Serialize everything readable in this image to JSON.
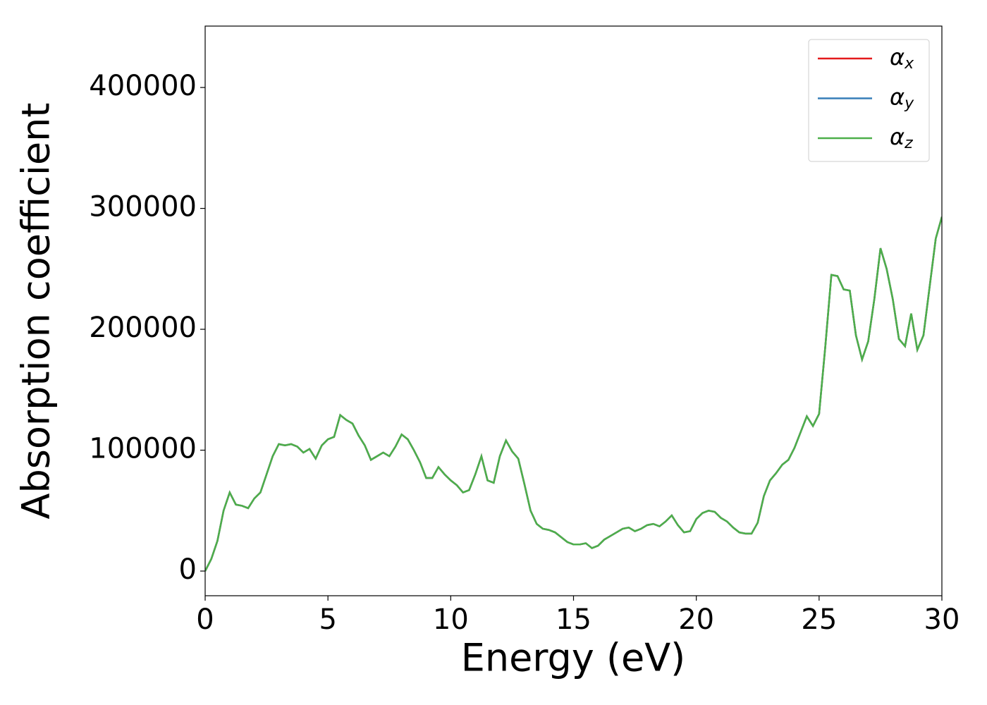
{
  "chart_data": {
    "type": "line",
    "xlabel": "Energy (eV)",
    "ylabel": "Absorption coefficient",
    "xlim": [
      0,
      30
    ],
    "ylim": [
      -20400,
      450800
    ],
    "xticks": [
      0,
      5,
      10,
      15,
      20,
      25,
      30
    ],
    "yticks": [
      0,
      100000,
      200000,
      300000,
      400000
    ],
    "grid": false,
    "legend": "upper right",
    "x": [
      0,
      0.25,
      0.5,
      0.75,
      1,
      1.25,
      1.5,
      1.75,
      2,
      2.25,
      2.5,
      2.75,
      3,
      3.25,
      3.5,
      3.75,
      4,
      4.25,
      4.5,
      4.75,
      5,
      5.25,
      5.5,
      5.75,
      6,
      6.25,
      6.5,
      6.75,
      7,
      7.25,
      7.5,
      7.75,
      8,
      8.25,
      8.5,
      8.75,
      9,
      9.25,
      9.5,
      9.75,
      10,
      10.25,
      10.5,
      10.75,
      11,
      11.25,
      11.5,
      11.75,
      12,
      12.25,
      12.5,
      12.75,
      13,
      13.25,
      13.5,
      13.75,
      14,
      14.25,
      14.5,
      14.75,
      15,
      15.25,
      15.5,
      15.75,
      16,
      16.25,
      16.5,
      16.75,
      17,
      17.25,
      17.5,
      17.75,
      18,
      18.25,
      18.5,
      18.75,
      19,
      19.25,
      19.5,
      19.75,
      20,
      20.25,
      20.5,
      20.75,
      21,
      21.25,
      21.5,
      21.75,
      22,
      22.25,
      22.5,
      22.75,
      23,
      23.25,
      23.5,
      23.75,
      24,
      24.25,
      24.5,
      24.75,
      25,
      25.25,
      25.5,
      25.75,
      26,
      26.25,
      26.5,
      26.75,
      27,
      27.25,
      27.5,
      27.75,
      28,
      28.25,
      28.5,
      28.75,
      29,
      29.25,
      29.5,
      29.75,
      30
    ],
    "series": [
      {
        "name": "αx",
        "color": "#e41a1c",
        "values": [
          0,
          10000,
          25000,
          50000,
          65000,
          55000,
          54000,
          52000,
          60000,
          65000,
          80000,
          95000,
          105000,
          104000,
          105000,
          103000,
          98000,
          101000,
          93000,
          104000,
          109000,
          111000,
          129000,
          125000,
          122000,
          112000,
          104000,
          92000,
          95000,
          98000,
          95000,
          103000,
          113000,
          109000,
          100000,
          90000,
          77000,
          77000,
          86000,
          80000,
          75000,
          71000,
          65000,
          67000,
          80000,
          95000,
          75000,
          73000,
          95000,
          108000,
          99000,
          93000,
          72000,
          50000,
          39000,
          35000,
          34000,
          32000,
          28000,
          24000,
          22000,
          22000,
          23000,
          19000,
          21000,
          26000,
          29000,
          32000,
          35000,
          36000,
          33000,
          35000,
          38000,
          39000,
          37000,
          41000,
          46000,
          38000,
          32000,
          33000,
          43000,
          48000,
          50000,
          49000,
          44000,
          41000,
          36000,
          32000,
          31000,
          31000,
          40000,
          62000,
          75000,
          81000,
          88000,
          92000,
          102000,
          115000,
          128000,
          120000,
          130000,
          185000,
          245000,
          244000,
          233000,
          232000,
          195000,
          175000,
          190000,
          225000,
          267000,
          250000,
          225000,
          192000,
          186000,
          213000,
          183000,
          195000,
          235000,
          275000,
          293000
        ]
      },
      {
        "name": "αy",
        "color": "#377eb8",
        "values": [
          0,
          10000,
          25000,
          50000,
          65000,
          55000,
          54000,
          52000,
          60000,
          65000,
          80000,
          95000,
          105000,
          104000,
          105000,
          103000,
          98000,
          101000,
          93000,
          104000,
          109000,
          111000,
          129000,
          125000,
          122000,
          112000,
          104000,
          92000,
          95000,
          98000,
          95000,
          103000,
          113000,
          109000,
          100000,
          90000,
          77000,
          77000,
          86000,
          80000,
          75000,
          71000,
          65000,
          67000,
          80000,
          95000,
          75000,
          73000,
          95000,
          108000,
          99000,
          93000,
          72000,
          50000,
          39000,
          35000,
          34000,
          32000,
          28000,
          24000,
          22000,
          22000,
          23000,
          19000,
          21000,
          26000,
          29000,
          32000,
          35000,
          36000,
          33000,
          35000,
          38000,
          39000,
          37000,
          41000,
          46000,
          38000,
          32000,
          33000,
          43000,
          48000,
          50000,
          49000,
          44000,
          41000,
          36000,
          32000,
          31000,
          31000,
          40000,
          62000,
          75000,
          81000,
          88000,
          92000,
          102000,
          115000,
          128000,
          120000,
          130000,
          185000,
          245000,
          244000,
          233000,
          232000,
          195000,
          175000,
          190000,
          225000,
          267000,
          250000,
          225000,
          192000,
          186000,
          213000,
          183000,
          195000,
          235000,
          275000,
          293000
        ]
      },
      {
        "name": "αz",
        "color": "#4daf4a",
        "values": [
          0,
          10000,
          25000,
          50000,
          65000,
          55000,
          54000,
          52000,
          60000,
          65000,
          80000,
          95000,
          105000,
          104000,
          105000,
          103000,
          98000,
          101000,
          93000,
          104000,
          109000,
          111000,
          129000,
          125000,
          122000,
          112000,
          104000,
          92000,
          95000,
          98000,
          95000,
          103000,
          113000,
          109000,
          100000,
          90000,
          77000,
          77000,
          86000,
          80000,
          75000,
          71000,
          65000,
          67000,
          80000,
          95000,
          75000,
          73000,
          95000,
          108000,
          99000,
          93000,
          72000,
          50000,
          39000,
          35000,
          34000,
          32000,
          28000,
          24000,
          22000,
          22000,
          23000,
          19000,
          21000,
          26000,
          29000,
          32000,
          35000,
          36000,
          33000,
          35000,
          38000,
          39000,
          37000,
          41000,
          46000,
          38000,
          32000,
          33000,
          43000,
          48000,
          50000,
          49000,
          44000,
          41000,
          36000,
          32000,
          31000,
          31000,
          40000,
          62000,
          75000,
          81000,
          88000,
          92000,
          102000,
          115000,
          128000,
          120000,
          130000,
          185000,
          245000,
          244000,
          233000,
          232000,
          195000,
          175000,
          190000,
          225000,
          267000,
          250000,
          225000,
          192000,
          186000,
          213000,
          183000,
          195000,
          235000,
          275000,
          293000
        ]
      }
    ]
  }
}
